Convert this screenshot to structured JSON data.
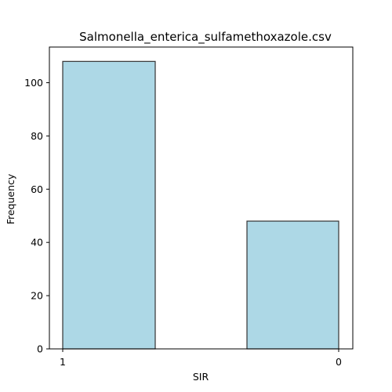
{
  "chart_data": {
    "type": "bar",
    "title": "Salmonella_enterica_sulfamethoxazole.csv",
    "xlabel": "SIR",
    "ylabel": "Frequency",
    "x_ticks": [
      "1",
      "0"
    ],
    "y_ticks": [
      0,
      20,
      40,
      60,
      80,
      100
    ],
    "ylim": [
      0,
      113.4
    ],
    "grid": false,
    "bars": [
      {
        "category": "1",
        "value": 108
      },
      {
        "category": "0",
        "value": 48
      }
    ],
    "colors": {
      "bar_fill": "#add8e6",
      "bar_edge": "#333333"
    }
  }
}
